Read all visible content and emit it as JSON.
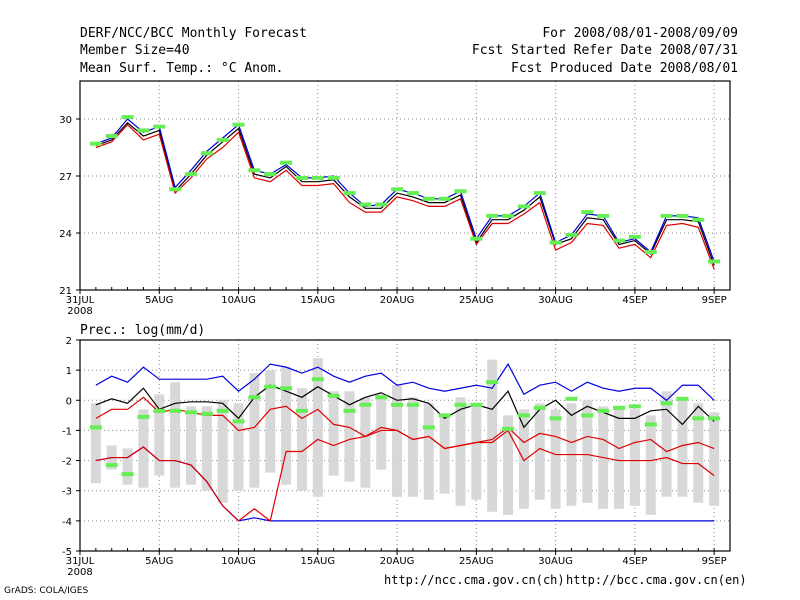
{
  "header": {
    "title": "DERF/NCC/BCC Monthly Forecast",
    "member_size": "Member Size=40",
    "variable": "Mean Surf. Temp.: °C Anom.",
    "period": "For 2008/08/01-2008/09/09",
    "started": "Fcst Started Refer Date 2008/07/31",
    "produced": "Fcst Produced Date 2008/08/01"
  },
  "footer": {
    "credit": "GrADS: COLA/IGES",
    "url_ncc": "http://ncc.cma.gov.cn(ch)",
    "url_bcc": "http://bcc.cma.gov.cn(en)"
  },
  "colors": {
    "mean": "#000000",
    "lower": "#e00000",
    "upper": "#0000e0",
    "obs": "#66ee55",
    "box": "#d8d8d8"
  },
  "chart_data": [
    {
      "type": "line",
      "title": "Mean Surf. Temp.: °C Anom.",
      "xlabel": "",
      "ylabel": "",
      "x": [
        1,
        2,
        3,
        4,
        5,
        6,
        7,
        8,
        9,
        10,
        11,
        12,
        13,
        14,
        15,
        16,
        17,
        18,
        19,
        20,
        21,
        22,
        23,
        24,
        25,
        26,
        27,
        28,
        29,
        30,
        31,
        32,
        33,
        34,
        35,
        36,
        37,
        38,
        39,
        40
      ],
      "x_ticks": [
        "31JUL",
        "5AUG",
        "10AUG",
        "15AUG",
        "20AUG",
        "25AUG",
        "30AUG",
        "4SEP",
        "9SEP"
      ],
      "x_tick_positions": [
        0,
        5,
        10,
        15,
        20,
        25,
        30,
        35,
        40
      ],
      "x_year_label": "2008",
      "ylim": [
        21,
        32
      ],
      "y_ticks": [
        "21",
        "24",
        "27",
        "30"
      ],
      "y_tick_values": [
        21,
        24,
        27,
        30
      ],
      "grid": true,
      "series": [
        {
          "name": "mean",
          "values": [
            28.6,
            28.9,
            29.8,
            29.1,
            29.4,
            26.2,
            27.1,
            28.1,
            28.8,
            29.5,
            27.1,
            26.9,
            27.5,
            26.7,
            26.7,
            26.8,
            25.9,
            25.3,
            25.3,
            26.1,
            25.9,
            25.6,
            25.6,
            26.0,
            23.5,
            24.7,
            24.7,
            25.2,
            25.9,
            23.4,
            23.7,
            24.8,
            24.7,
            23.4,
            23.6,
            22.9,
            24.7,
            24.7,
            24.6,
            22.3
          ]
        },
        {
          "name": "upper",
          "values": [
            28.7,
            29.0,
            30.0,
            29.3,
            29.6,
            26.4,
            27.3,
            28.3,
            29.0,
            29.7,
            27.3,
            27.1,
            27.6,
            26.9,
            26.9,
            27.0,
            26.1,
            25.4,
            25.5,
            26.3,
            26.1,
            25.8,
            25.8,
            26.2,
            23.7,
            24.9,
            24.9,
            25.4,
            26.1,
            23.5,
            23.9,
            25.0,
            24.9,
            23.5,
            23.7,
            23.0,
            24.9,
            24.9,
            24.8,
            22.5
          ]
        },
        {
          "name": "lower",
          "values": [
            28.5,
            28.8,
            29.7,
            28.9,
            29.2,
            26.1,
            26.9,
            27.9,
            28.5,
            29.3,
            26.9,
            26.7,
            27.3,
            26.5,
            26.5,
            26.6,
            25.6,
            25.1,
            25.1,
            25.9,
            25.7,
            25.4,
            25.4,
            25.8,
            23.4,
            24.5,
            24.5,
            25.0,
            25.6,
            23.1,
            23.5,
            24.5,
            24.4,
            23.2,
            23.4,
            22.7,
            24.4,
            24.5,
            24.3,
            22.1
          ]
        }
      ],
      "observed": [
        28.7,
        29.1,
        30.1,
        29.4,
        29.6,
        26.3,
        27.1,
        28.2,
        28.9,
        29.7,
        27.3,
        27.1,
        27.7,
        26.9,
        26.9,
        26.9,
        26.1,
        25.5,
        25.5,
        26.3,
        26.1,
        25.8,
        25.8,
        26.2,
        23.7,
        24.9,
        24.9,
        25.4,
        26.1,
        23.5,
        23.9,
        25.1,
        24.9,
        23.6,
        23.8,
        23.0,
        24.9,
        24.9,
        24.7,
        22.5
      ]
    },
    {
      "type": "line",
      "title": "Prec.: log(mm/d)",
      "xlabel": "",
      "ylabel": "",
      "x": [
        1,
        2,
        3,
        4,
        5,
        6,
        7,
        8,
        9,
        10,
        11,
        12,
        13,
        14,
        15,
        16,
        17,
        18,
        19,
        20,
        21,
        22,
        23,
        24,
        25,
        26,
        27,
        28,
        29,
        30,
        31,
        32,
        33,
        34,
        35,
        36,
        37,
        38,
        39,
        40
      ],
      "x_ticks": [
        "31JUL",
        "5AUG",
        "10AUG",
        "15AUG",
        "20AUG",
        "25AUG",
        "30AUG",
        "4SEP",
        "9SEP"
      ],
      "x_tick_positions": [
        0,
        5,
        10,
        15,
        20,
        25,
        30,
        35,
        40
      ],
      "x_year_label": "2008",
      "ylim": [
        -5,
        2
      ],
      "y_ticks": [
        "-5",
        "-4",
        "-3",
        "-2",
        "-1",
        "0",
        "1",
        "2"
      ],
      "y_tick_values": [
        -5,
        -4,
        -3,
        -2,
        -1,
        0,
        1,
        2
      ],
      "grid": true,
      "series": [
        {
          "name": "mean",
          "values": [
            -0.15,
            0.05,
            -0.1,
            0.4,
            -0.3,
            -0.1,
            -0.05,
            -0.05,
            -0.1,
            -0.6,
            0.1,
            0.5,
            0.3,
            0.1,
            0.45,
            0.15,
            -0.15,
            0.1,
            0.25,
            0.0,
            0.05,
            -0.1,
            -0.6,
            -0.3,
            -0.15,
            -0.3,
            0.3,
            -0.9,
            -0.3,
            0.0,
            -0.5,
            -0.2,
            -0.4,
            -0.6,
            -0.6,
            -0.35,
            -0.3,
            -0.8,
            -0.2,
            -0.7
          ]
        },
        {
          "name": "upper",
          "values": [
            0.5,
            0.8,
            0.6,
            1.1,
            0.7,
            0.7,
            0.7,
            0.7,
            0.8,
            0.3,
            0.7,
            1.2,
            1.1,
            0.9,
            1.1,
            0.8,
            0.6,
            0.8,
            0.9,
            0.5,
            0.6,
            0.4,
            0.3,
            0.4,
            0.5,
            0.4,
            1.2,
            0.2,
            0.5,
            0.6,
            0.3,
            0.6,
            0.4,
            0.3,
            0.4,
            0.4,
            0.0,
            0.5,
            0.5,
            0.0
          ]
        },
        {
          "name": "lower",
          "values": [
            -0.6,
            -0.3,
            -0.3,
            0.1,
            -0.4,
            -0.3,
            -0.4,
            -0.5,
            -0.5,
            -1.0,
            -0.9,
            -0.3,
            -0.2,
            -0.6,
            -0.3,
            -0.8,
            -0.9,
            -1.2,
            -1.0,
            -1.0,
            -1.3,
            -1.2,
            -1.6,
            -1.5,
            -1.4,
            -1.3,
            -0.9,
            -1.4,
            -1.1,
            -1.2,
            -1.4,
            -1.2,
            -1.3,
            -1.6,
            -1.4,
            -1.3,
            -1.7,
            -1.5,
            -1.4,
            -1.6
          ]
        },
        {
          "name": "lowest",
          "values": [
            -2.0,
            -1.9,
            -1.9,
            -1.55,
            -2.0,
            -2.0,
            -2.15,
            -2.7,
            -3.5,
            -4.0,
            -3.9,
            -4.0,
            -4.0,
            -4.0,
            -4.0,
            -4.0,
            -4.0,
            -4.0,
            -4.0,
            -4.0,
            -4.0,
            -4.0,
            -4.0,
            -4.0,
            -4.0,
            -4.0,
            -4.0,
            -4.0,
            -4.0,
            -4.0,
            -4.0,
            -4.0,
            -4.0,
            -4.0,
            -4.0,
            -4.0,
            -4.0,
            -4.0,
            -4.0,
            -4.0
          ]
        },
        {
          "name": "q10",
          "values": [
            -2.0,
            -1.9,
            -1.9,
            -1.55,
            -2.0,
            -2.0,
            -2.15,
            -2.7,
            -3.5,
            -4.0,
            -3.6,
            -4.0,
            -1.7,
            -1.7,
            -1.3,
            -1.5,
            -1.3,
            -1.2,
            -0.9,
            -1.0,
            -1.3,
            -1.2,
            -1.6,
            -1.5,
            -1.4,
            -1.4,
            -1.0,
            -2.0,
            -1.6,
            -1.8,
            -1.8,
            -1.8,
            -1.9,
            -2.0,
            -2.0,
            -2.0,
            -1.9,
            -2.1,
            -2.1,
            -2.5
          ]
        }
      ],
      "observed": [
        -0.9,
        -2.15,
        -2.45,
        -0.55,
        -0.35,
        -0.35,
        -0.4,
        -0.45,
        -0.35,
        -0.7,
        0.1,
        0.45,
        0.4,
        -0.35,
        0.7,
        0.15,
        -0.35,
        -0.15,
        0.1,
        -0.15,
        -0.15,
        -0.9,
        -0.5,
        -0.15,
        -0.15,
        0.6,
        -0.95,
        -0.5,
        -0.25,
        -0.6,
        0.05,
        -0.5,
        -0.35,
        -0.25,
        -0.2,
        -0.8,
        -0.1,
        0.05,
        -0.6,
        -0.6
      ],
      "boxes": [
        {
          "lo": -2.75,
          "hi": -0.1
        },
        {
          "lo": -2.3,
          "hi": -1.5
        },
        {
          "lo": -2.8,
          "hi": -1.6
        },
        {
          "lo": -2.9,
          "hi": -0.3
        },
        {
          "lo": -2.5,
          "hi": 0.2
        },
        {
          "lo": -2.9,
          "hi": 0.6
        },
        {
          "lo": -2.8,
          "hi": -0.2
        },
        {
          "lo": -3.0,
          "hi": -0.2
        },
        {
          "lo": -3.4,
          "hi": 0.0
        },
        {
          "lo": -3.0,
          "hi": -0.1
        },
        {
          "lo": -2.9,
          "hi": 0.9
        },
        {
          "lo": -2.4,
          "hi": 1.0
        },
        {
          "lo": -2.8,
          "hi": 1.1
        },
        {
          "lo": -3.0,
          "hi": 0.4
        },
        {
          "lo": -3.2,
          "hi": 1.4
        },
        {
          "lo": -2.5,
          "hi": 0.3
        },
        {
          "lo": -2.7,
          "hi": 0.3
        },
        {
          "lo": -2.9,
          "hi": 0.1
        },
        {
          "lo": -2.3,
          "hi": 0.2
        },
        {
          "lo": -3.2,
          "hi": 0.5
        },
        {
          "lo": -3.2,
          "hi": 0.1
        },
        {
          "lo": -3.3,
          "hi": -0.1
        },
        {
          "lo": -3.1,
          "hi": -0.5
        },
        {
          "lo": -3.5,
          "hi": 0.1
        },
        {
          "lo": -3.3,
          "hi": -0.2
        },
        {
          "lo": -3.7,
          "hi": 1.35
        },
        {
          "lo": -3.8,
          "hi": -0.5
        },
        {
          "lo": -3.6,
          "hi": -0.3
        },
        {
          "lo": -3.3,
          "hi": -0.1
        },
        {
          "lo": -3.6,
          "hi": -0.3
        },
        {
          "lo": -3.5,
          "hi": -0.1
        },
        {
          "lo": -3.4,
          "hi": 0.0
        },
        {
          "lo": -3.6,
          "hi": -0.2
        },
        {
          "lo": -3.6,
          "hi": -0.2
        },
        {
          "lo": -3.5,
          "hi": -0.3
        },
        {
          "lo": -3.8,
          "hi": -0.5
        },
        {
          "lo": -3.2,
          "hi": 0.3
        },
        {
          "lo": -3.2,
          "hi": 0.1
        },
        {
          "lo": -3.4,
          "hi": -0.1
        },
        {
          "lo": -3.5,
          "hi": -0.4
        }
      ]
    }
  ]
}
